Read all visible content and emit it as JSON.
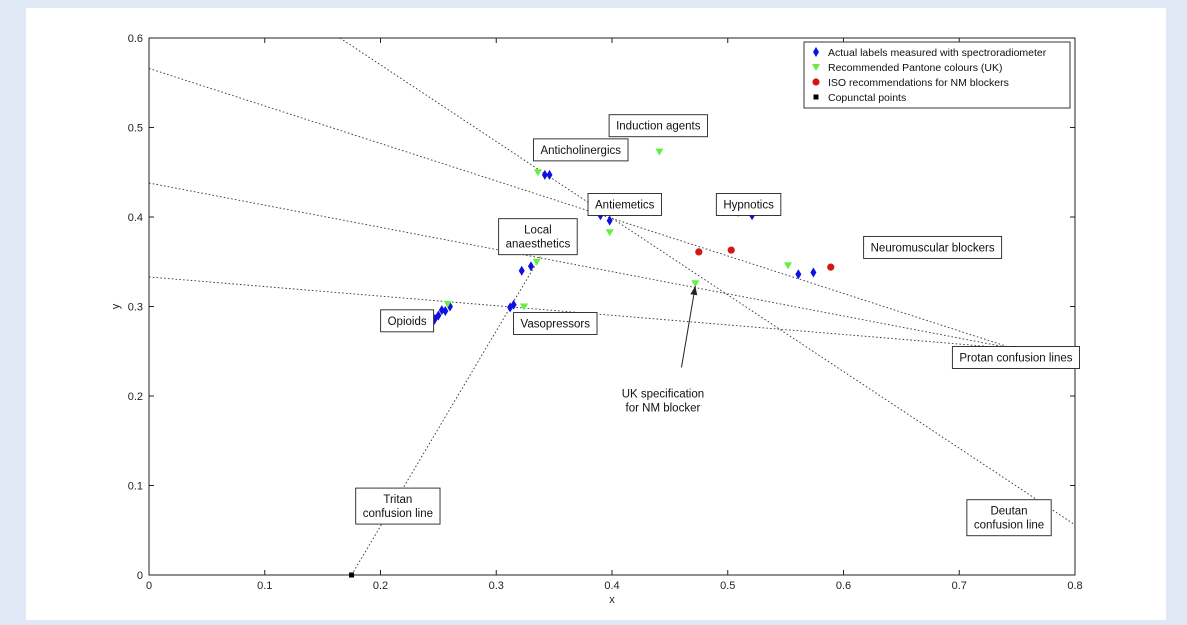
{
  "chart_data": {
    "type": "scatter",
    "xlabel": "x",
    "ylabel": "y",
    "xlim": [
      0,
      0.8
    ],
    "ylim": [
      0,
      0.6
    ],
    "x_ticks": [
      "0",
      "0.1",
      "0.2",
      "0.3",
      "0.4",
      "0.5",
      "0.6",
      "0.7",
      "0.8"
    ],
    "y_ticks": [
      "0",
      "0.1",
      "0.2",
      "0.3",
      "0.4",
      "0.5",
      "0.6"
    ],
    "grid": false,
    "legend_position": "top-right",
    "series": [
      {
        "name": "Actual labels measured with spectroradiometer",
        "marker": "diamond",
        "color": "#1010e0",
        "points": [
          [
            0.245,
            0.282
          ],
          [
            0.247,
            0.286
          ],
          [
            0.25,
            0.29
          ],
          [
            0.253,
            0.296
          ],
          [
            0.256,
            0.295
          ],
          [
            0.26,
            0.3
          ],
          [
            0.312,
            0.299
          ],
          [
            0.315,
            0.302
          ],
          [
            0.322,
            0.34
          ],
          [
            0.33,
            0.345
          ],
          [
            0.342,
            0.447
          ],
          [
            0.346,
            0.447
          ],
          [
            0.39,
            0.402
          ],
          [
            0.398,
            0.396
          ],
          [
            0.521,
            0.402
          ],
          [
            0.561,
            0.336
          ],
          [
            0.574,
            0.338
          ]
        ]
      },
      {
        "name": "Recommended Pantone colours (UK)",
        "marker": "triangle-down",
        "color": "#66ee44",
        "points": [
          [
            0.258,
            0.303
          ],
          [
            0.324,
            0.3
          ],
          [
            0.335,
            0.35
          ],
          [
            0.336,
            0.45
          ],
          [
            0.398,
            0.383
          ],
          [
            0.441,
            0.473
          ],
          [
            0.472,
            0.326
          ],
          [
            0.509,
            0.404
          ],
          [
            0.552,
            0.346
          ]
        ]
      },
      {
        "name": "ISO recommendations for NM blockers",
        "marker": "circle",
        "color": "#d01818",
        "points": [
          [
            0.475,
            0.361
          ],
          [
            0.503,
            0.363
          ],
          [
            0.589,
            0.344
          ]
        ]
      },
      {
        "name": "Copunctal points",
        "marker": "square",
        "color": "#000000",
        "points": [
          [
            0.747,
            0.253
          ],
          [
            0.175,
            0.0
          ]
        ]
      }
    ],
    "lines": [
      {
        "kind": "dotted",
        "from": [
          0,
          0.566
        ],
        "to": [
          0.747,
          0.253
        ]
      },
      {
        "kind": "dotted",
        "from": [
          0,
          0.438
        ],
        "to": [
          0.747,
          0.253
        ]
      },
      {
        "kind": "dotted",
        "from": [
          0,
          0.333
        ],
        "to": [
          0.747,
          0.253
        ]
      },
      {
        "kind": "dotted",
        "from": [
          0.165,
          0.6
        ],
        "to": [
          0.8,
          0.056
        ]
      },
      {
        "kind": "dotted",
        "from": [
          0.175,
          0.0
        ],
        "to": [
          0.34,
          0.36
        ]
      }
    ],
    "annotations": [
      {
        "text": [
          "Induction agents"
        ],
        "x": 0.44,
        "y": 0.502
      },
      {
        "text": [
          "Anticholinergics"
        ],
        "x": 0.373,
        "y": 0.475
      },
      {
        "text": [
          "Antiemetics"
        ],
        "x": 0.411,
        "y": 0.414
      },
      {
        "text": [
          "Hypnotics"
        ],
        "x": 0.518,
        "y": 0.414
      },
      {
        "text": [
          "Local",
          "anaesthetics"
        ],
        "x": 0.336,
        "y": 0.378
      },
      {
        "text": [
          "Neuromuscular blockers"
        ],
        "x": 0.677,
        "y": 0.366
      },
      {
        "text": [
          "Opioids"
        ],
        "x": 0.223,
        "y": 0.284
      },
      {
        "text": [
          "Vasopressors"
        ],
        "x": 0.351,
        "y": 0.281
      },
      {
        "text": [
          "Protan confusion lines"
        ],
        "x": 0.749,
        "y": 0.243
      },
      {
        "text": [
          "Tritan",
          "confusion line"
        ],
        "x": 0.215,
        "y": 0.077
      },
      {
        "text": [
          "Deutan",
          "confusion line"
        ],
        "x": 0.743,
        "y": 0.064
      }
    ],
    "callout": {
      "text": [
        "UK specification",
        "for NM blocker"
      ],
      "x": 0.444,
      "y": 0.195,
      "arrow_from": [
        0.46,
        0.232
      ],
      "arrow_to": [
        0.472,
        0.323
      ]
    }
  }
}
